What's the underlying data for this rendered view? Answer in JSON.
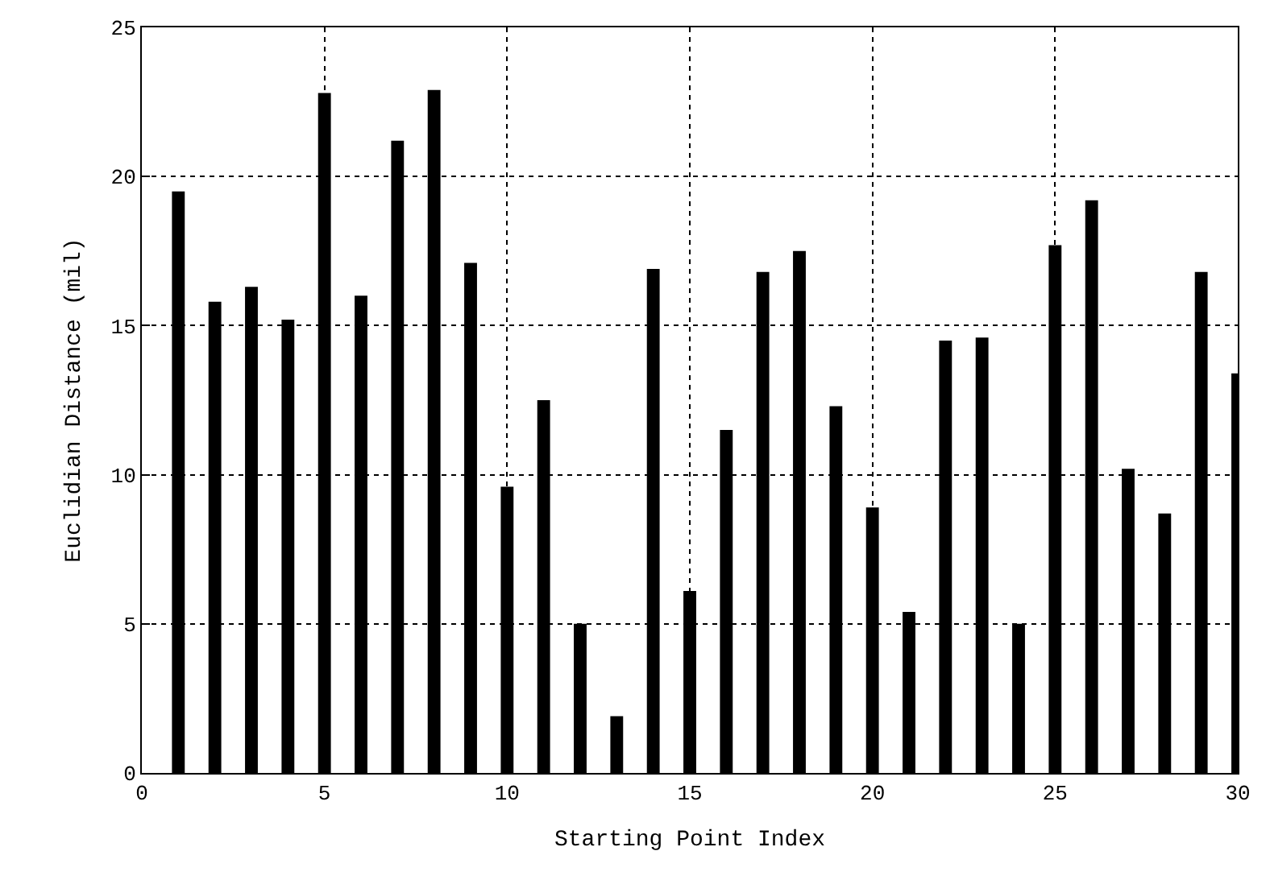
{
  "chart_data": {
    "type": "bar",
    "xlabel": "Starting Point Index",
    "ylabel": "Euclidian Distance (mil)",
    "x": [
      1,
      2,
      3,
      4,
      5,
      6,
      7,
      8,
      9,
      10,
      11,
      12,
      13,
      14,
      15,
      16,
      17,
      18,
      19,
      20,
      21,
      22,
      23,
      24,
      25,
      26,
      27,
      28,
      29,
      30
    ],
    "values": [
      19.5,
      15.8,
      16.3,
      15.2,
      22.8,
      16.0,
      21.2,
      22.9,
      17.1,
      9.6,
      12.5,
      5.0,
      1.9,
      16.9,
      6.1,
      11.5,
      16.8,
      17.5,
      12.3,
      8.9,
      5.4,
      14.5,
      14.6,
      5.0,
      17.7,
      19.2,
      10.2,
      8.7,
      16.8,
      13.4
    ],
    "color": "#000000",
    "xlim": [
      0,
      30
    ],
    "xticks": [
      0,
      5,
      10,
      15,
      20,
      25,
      30
    ],
    "ylim": [
      0,
      25
    ],
    "yticks": [
      0,
      5,
      10,
      15,
      20,
      25
    ],
    "grid": true
  }
}
